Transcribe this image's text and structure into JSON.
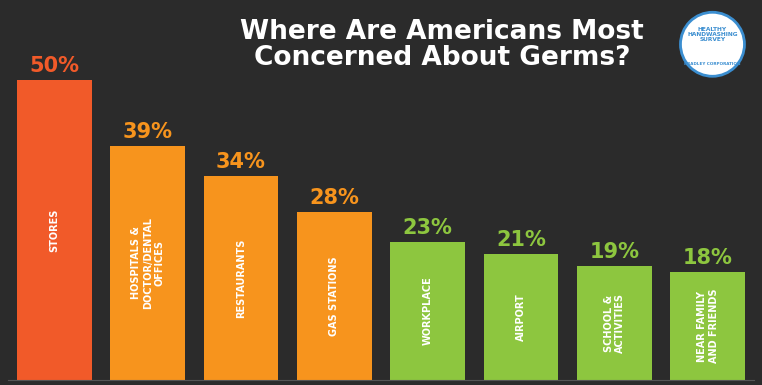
{
  "chart_data": {
    "type": "bar",
    "title": "Where Are Americans Most Concerned About Germs?",
    "annotations": [
      "HEALTHY HANDWASHING SURVEY",
      "BRADLEY CORPORATION"
    ],
    "categories": [
      "STORES",
      "HOSPITALS & DOCTOR/DENTAL OFFICES",
      "RESTAURANTS",
      "GAS STATIONS",
      "WORKPLACE",
      "AIRPORT",
      "SCHOOL & ACTIVITIES",
      "NEAR FAMILY AND FRIENDS"
    ],
    "values": [
      50,
      39,
      34,
      28,
      23,
      21,
      19,
      18
    ],
    "value_labels": [
      "50%",
      "39%",
      "34%",
      "28%",
      "23%",
      "21%",
      "19%",
      "18%"
    ],
    "colors": [
      "#f15a29",
      "#f7941d",
      "#f7941d",
      "#f7941d",
      "#8dc63f",
      "#8dc63f",
      "#8dc63f",
      "#8dc63f"
    ],
    "ylim": [
      0,
      50
    ],
    "data_labels": true,
    "tick_labels": false,
    "grid": false
  }
}
